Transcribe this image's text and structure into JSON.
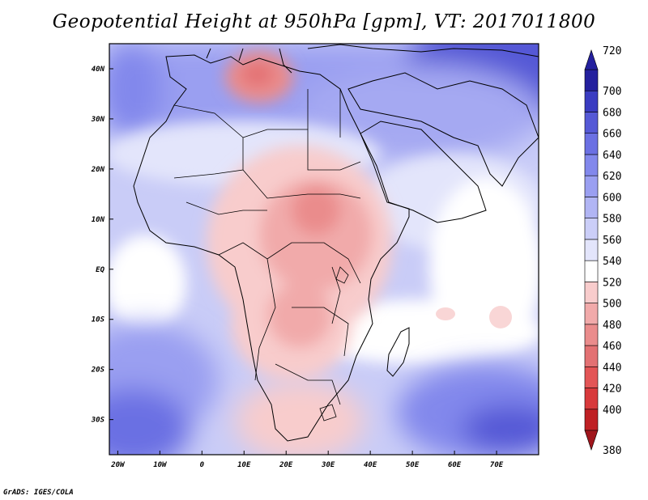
{
  "title": "Geopotential Height at 950hPa [gpm], VT: 2017011800",
  "credit": "GrADS: IGES/COLA",
  "map": {
    "lon_range": [
      -22,
      80
    ],
    "lat_range": [
      -37,
      45
    ],
    "x_ticks": [
      {
        "lon": -20,
        "label": "20W"
      },
      {
        "lon": -10,
        "label": "10W"
      },
      {
        "lon": 0,
        "label": "0"
      },
      {
        "lon": 10,
        "label": "10E"
      },
      {
        "lon": 20,
        "label": "20E"
      },
      {
        "lon": 30,
        "label": "30E"
      },
      {
        "lon": 40,
        "label": "40E"
      },
      {
        "lon": 50,
        "label": "50E"
      },
      {
        "lon": 60,
        "label": "60E"
      },
      {
        "lon": 70,
        "label": "70E"
      }
    ],
    "y_ticks": [
      {
        "lat": 40,
        "label": "40N"
      },
      {
        "lat": 30,
        "label": "30N"
      },
      {
        "lat": 20,
        "label": "20N"
      },
      {
        "lat": 10,
        "label": "10N"
      },
      {
        "lat": 0,
        "label": "EQ"
      },
      {
        "lat": -10,
        "label": "10S"
      },
      {
        "lat": -20,
        "label": "20S"
      },
      {
        "lat": -30,
        "label": "30S"
      }
    ]
  },
  "colorbar": {
    "levels": [
      380,
      400,
      420,
      440,
      460,
      480,
      500,
      520,
      540,
      560,
      580,
      600,
      620,
      640,
      660,
      680,
      700,
      720
    ],
    "labels": [
      "380",
      "400",
      "420",
      "440",
      "460",
      "480",
      "500",
      "520",
      "540",
      "560",
      "580",
      "600",
      "620",
      "640",
      "660",
      "680",
      "700",
      "720"
    ],
    "colors": [
      "#a0151c",
      "#bf2024",
      "#d8393b",
      "#e35556",
      "#e37173",
      "#ea8c8c",
      "#f1aaaa",
      "#f8cccc",
      "#ffffff",
      "#e3e5fb",
      "#cbcef8",
      "#b1b5f4",
      "#9a9ff1",
      "#8288ec",
      "#6b70e3",
      "#5559d6",
      "#3a3cc1",
      "#24209e"
    ]
  }
}
